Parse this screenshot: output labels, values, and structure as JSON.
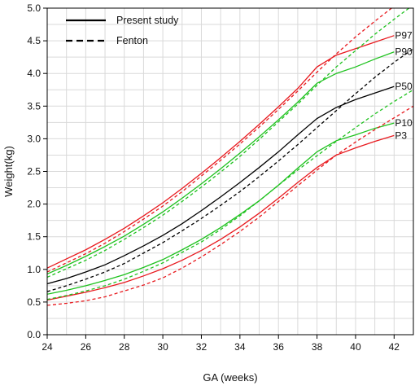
{
  "chart_data": {
    "type": "line",
    "xlabel": "GA (weeks)",
    "ylabel": "Weight(kg)",
    "xlim": [
      24,
      43
    ],
    "ylim": [
      0,
      5
    ],
    "grid": true,
    "x_ticks": [
      "24",
      "26",
      "28",
      "30",
      "32",
      "34",
      "36",
      "38",
      "40",
      "42"
    ],
    "y_ticks": [
      "0.0",
      "0.5",
      "1.0",
      "1.5",
      "2.0",
      "2.5",
      "3.0",
      "3.5",
      "4.0",
      "4.5",
      "5.0"
    ],
    "legend_position": "top-left",
    "legend": [
      {
        "label": "Present study",
        "style": "solid"
      },
      {
        "label": "Fenton",
        "style": "dashed"
      }
    ],
    "colors": {
      "P3": "#e8191e",
      "P10": "#1ec21e",
      "P50": "#000000",
      "P90": "#1ec21e",
      "P97": "#e8191e"
    },
    "series": [
      {
        "name": "P97",
        "source": "Present study",
        "style": "solid",
        "x": [
          24,
          25,
          26,
          27,
          28,
          29,
          30,
          31,
          32,
          33,
          34,
          35,
          36,
          37,
          38,
          39,
          40,
          41,
          42
        ],
        "y": [
          1.02,
          1.16,
          1.3,
          1.46,
          1.63,
          1.82,
          2.02,
          2.24,
          2.47,
          2.71,
          2.96,
          3.22,
          3.49,
          3.77,
          4.1,
          4.28,
          4.38,
          4.48,
          4.58
        ]
      },
      {
        "name": "P90",
        "source": "Present study",
        "style": "solid",
        "x": [
          24,
          25,
          26,
          27,
          28,
          29,
          30,
          31,
          32,
          33,
          34,
          35,
          36,
          37,
          38,
          39,
          40,
          41,
          42
        ],
        "y": [
          0.93,
          1.06,
          1.2,
          1.35,
          1.51,
          1.69,
          1.88,
          2.09,
          2.31,
          2.54,
          2.78,
          3.03,
          3.29,
          3.56,
          3.85,
          4.0,
          4.1,
          4.22,
          4.33
        ]
      },
      {
        "name": "P50",
        "source": "Present study",
        "style": "solid",
        "x": [
          24,
          25,
          26,
          27,
          28,
          29,
          30,
          31,
          32,
          33,
          34,
          35,
          36,
          37,
          38,
          39,
          40,
          41,
          42
        ],
        "y": [
          0.78,
          0.86,
          0.96,
          1.07,
          1.21,
          1.36,
          1.52,
          1.7,
          1.9,
          2.11,
          2.33,
          2.56,
          2.8,
          3.06,
          3.31,
          3.48,
          3.6,
          3.7,
          3.8
        ]
      },
      {
        "name": "P10",
        "source": "Present study",
        "style": "solid",
        "x": [
          24,
          25,
          26,
          27,
          28,
          29,
          30,
          31,
          32,
          33,
          34,
          35,
          36,
          37,
          38,
          39,
          40,
          41,
          42
        ],
        "y": [
          0.62,
          0.68,
          0.75,
          0.83,
          0.92,
          1.03,
          1.15,
          1.3,
          1.46,
          1.64,
          1.84,
          2.05,
          2.29,
          2.55,
          2.8,
          2.97,
          3.06,
          3.16,
          3.24
        ]
      },
      {
        "name": "P3",
        "source": "Present study",
        "style": "solid",
        "x": [
          24,
          25,
          26,
          27,
          28,
          29,
          30,
          31,
          32,
          33,
          34,
          35,
          36,
          37,
          38,
          39,
          40,
          41,
          42
        ],
        "y": [
          0.53,
          0.59,
          0.65,
          0.72,
          0.8,
          0.9,
          1.01,
          1.14,
          1.29,
          1.46,
          1.65,
          1.86,
          2.09,
          2.33,
          2.56,
          2.75,
          2.86,
          2.96,
          3.05
        ]
      },
      {
        "name": "P97",
        "source": "Fenton",
        "style": "dashed",
        "x": [
          24,
          25,
          26,
          27,
          28,
          29,
          30,
          31,
          32,
          33,
          34,
          35,
          36,
          37,
          38,
          39,
          40,
          41,
          42,
          43
        ],
        "y": [
          0.96,
          1.1,
          1.24,
          1.4,
          1.58,
          1.77,
          1.97,
          2.19,
          2.43,
          2.67,
          2.92,
          3.18,
          3.45,
          3.73,
          4.02,
          4.3,
          4.56,
          4.8,
          5.03,
          5.2
        ]
      },
      {
        "name": "P90",
        "source": "Fenton",
        "style": "dashed",
        "x": [
          24,
          25,
          26,
          27,
          28,
          29,
          30,
          31,
          32,
          33,
          34,
          35,
          36,
          37,
          38,
          39,
          40,
          41,
          42,
          43
        ],
        "y": [
          0.88,
          1.01,
          1.14,
          1.29,
          1.46,
          1.64,
          1.83,
          2.04,
          2.26,
          2.49,
          2.73,
          2.99,
          3.26,
          3.53,
          3.82,
          4.1,
          4.35,
          4.6,
          4.83,
          5.05
        ]
      },
      {
        "name": "P50",
        "source": "Fenton",
        "style": "dashed",
        "x": [
          24,
          25,
          26,
          27,
          28,
          29,
          30,
          31,
          32,
          33,
          34,
          35,
          36,
          37,
          38,
          39,
          40,
          41,
          42,
          43
        ],
        "y": [
          0.66,
          0.75,
          0.85,
          0.96,
          1.09,
          1.25,
          1.41,
          1.59,
          1.78,
          1.98,
          2.19,
          2.42,
          2.66,
          2.91,
          3.17,
          3.43,
          3.69,
          3.94,
          4.17,
          4.38
        ]
      },
      {
        "name": "P10",
        "source": "Fenton",
        "style": "dashed",
        "x": [
          24,
          25,
          26,
          27,
          28,
          29,
          30,
          31,
          32,
          33,
          34,
          35,
          36,
          37,
          38,
          39,
          40,
          41,
          42,
          43
        ],
        "y": [
          0.54,
          0.6,
          0.67,
          0.75,
          0.85,
          0.97,
          1.1,
          1.26,
          1.42,
          1.61,
          1.82,
          2.05,
          2.29,
          2.52,
          2.74,
          2.96,
          3.17,
          3.38,
          3.57,
          3.75
        ]
      },
      {
        "name": "P3",
        "source": "Fenton",
        "style": "dashed",
        "x": [
          24,
          25,
          26,
          27,
          28,
          29,
          30,
          31,
          32,
          33,
          34,
          35,
          36,
          37,
          38,
          39,
          40,
          41,
          42,
          43
        ],
        "y": [
          0.45,
          0.48,
          0.52,
          0.58,
          0.67,
          0.76,
          0.87,
          1.02,
          1.19,
          1.38,
          1.58,
          1.8,
          2.04,
          2.28,
          2.52,
          2.75,
          2.95,
          3.14,
          3.32,
          3.5
        ]
      }
    ],
    "curve_labels": [
      {
        "text": "P97",
        "series": "P97"
      },
      {
        "text": "P90",
        "series": "P90"
      },
      {
        "text": "P50",
        "series": "P50"
      },
      {
        "text": "P10",
        "series": "P10"
      },
      {
        "text": "P3",
        "series": "P3"
      }
    ]
  }
}
